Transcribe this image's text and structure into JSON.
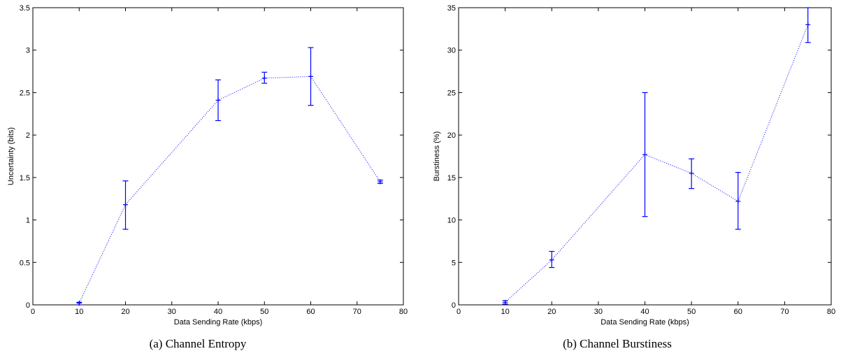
{
  "chart_data": [
    {
      "type": "line",
      "caption": "(a) Channel Entropy",
      "xlabel": "Data Sending Rate (kbps)",
      "ylabel": "Uncertainty (bits)",
      "xlim": [
        0,
        80
      ],
      "ylim": [
        0,
        3.5
      ],
      "xticks": [
        "0",
        "10",
        "20",
        "30",
        "40",
        "50",
        "60",
        "70",
        "80"
      ],
      "yticks": [
        "0",
        "0.5",
        "1",
        "1.5",
        "2",
        "2.5",
        "3",
        "3.5"
      ],
      "grid": false,
      "line_style": "dotted",
      "marker": "+",
      "color": "#0000ff",
      "x": [
        10,
        20,
        40,
        50,
        60,
        75
      ],
      "y": [
        0.02,
        1.18,
        2.41,
        2.67,
        2.69,
        1.45
      ],
      "yerr_low": [
        0.0,
        0.89,
        2.17,
        2.61,
        2.35,
        1.43
      ],
      "yerr_high": [
        0.03,
        1.46,
        2.65,
        2.74,
        3.03,
        1.47
      ]
    },
    {
      "type": "line",
      "caption": "(b) Channel Burstiness",
      "xlabel": "Data Sending Rate (kbps)",
      "ylabel": "Burstiness (%)",
      "xlim": [
        0,
        80
      ],
      "ylim": [
        0,
        35
      ],
      "xticks": [
        "0",
        "10",
        "20",
        "30",
        "40",
        "50",
        "60",
        "70",
        "80"
      ],
      "yticks": [
        "0",
        "5",
        "10",
        "15",
        "20",
        "25",
        "30",
        "35"
      ],
      "grid": false,
      "line_style": "dotted",
      "marker": "+",
      "color": "#0000ff",
      "x": [
        10,
        20,
        40,
        50,
        60,
        75
      ],
      "y": [
        0.3,
        5.3,
        17.7,
        15.5,
        12.2,
        33.0
      ],
      "yerr_low": [
        0.1,
        4.4,
        10.4,
        13.7,
        8.9,
        30.9
      ],
      "yerr_high": [
        0.5,
        6.3,
        25.0,
        17.2,
        15.6,
        35.0
      ]
    }
  ]
}
